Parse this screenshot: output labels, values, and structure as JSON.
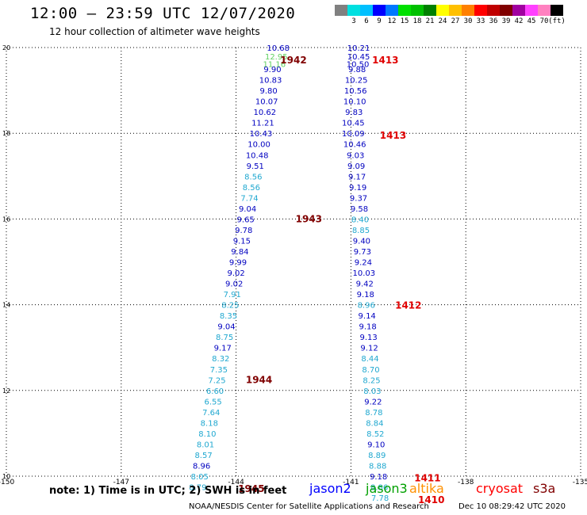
{
  "header": {
    "title": "12:00 – 23:59 UTC 12/07/2020",
    "subtitle": "12 hour collection of altimeter wave heights"
  },
  "legend": {
    "unit": "(ft)",
    "colors": [
      "#808080",
      "#00e0e0",
      "#00c0ff",
      "#0000ff",
      "#0078ff",
      "#00e000",
      "#00c000",
      "#008000",
      "#ffff00",
      "#ffc000",
      "#ff8000",
      "#ff0000",
      "#c00000",
      "#800000",
      "#a000a0",
      "#ff40ff",
      "#ff80c0",
      "#000000"
    ],
    "labels": [
      "3",
      "6",
      "9",
      "12",
      "15",
      "18",
      "21",
      "24",
      "27",
      "30",
      "33",
      "36",
      "39",
      "42",
      "45",
      "70"
    ]
  },
  "axes": {
    "x_ticks": [
      "-150",
      "-147",
      "-144",
      "-141",
      "-138",
      "-135"
    ],
    "y_ticks": [
      "20",
      "18",
      "16",
      "14",
      "12",
      "10"
    ]
  },
  "chart_data": {
    "type": "scatter",
    "xlim": [
      -150,
      -135
    ],
    "ylim": [
      10,
      20
    ],
    "grid": true,
    "tracks": [
      {
        "pass": "1942",
        "pass_lon": -142.5,
        "pass_lat": 19.7,
        "pass_color": "#800000",
        "points": [
          {
            "lon": -142.9,
            "lat": 20.0,
            "v": "10.68",
            "c": "#0000c0"
          },
          {
            "lon": -142.95,
            "lat": 19.8,
            "v": "12.95",
            "c": "#60d060"
          },
          {
            "lon": -143.0,
            "lat": 19.62,
            "v": "11.16",
            "c": "#60d060"
          },
          {
            "lon": -143.05,
            "lat": 19.5,
            "v": "9.90",
            "c": "#0000c0"
          },
          {
            "lon": -143.1,
            "lat": 19.25,
            "v": "10.83",
            "c": "#0000c0"
          },
          {
            "lon": -143.15,
            "lat": 19.0,
            "v": "9.80",
            "c": "#0000c0"
          },
          {
            "lon": -143.2,
            "lat": 18.75,
            "v": "10.07",
            "c": "#0000c0"
          },
          {
            "lon": -143.25,
            "lat": 18.5,
            "v": "10.62",
            "c": "#0000c0"
          },
          {
            "lon": -143.3,
            "lat": 18.25,
            "v": "11.21",
            "c": "#0000c0"
          },
          {
            "lon": -143.35,
            "lat": 18.0,
            "v": "10.43",
            "c": "#0000c0"
          },
          {
            "lon": -143.4,
            "lat": 17.75,
            "v": "10.00",
            "c": "#0000c0"
          },
          {
            "lon": -143.45,
            "lat": 17.5,
            "v": "10.48",
            "c": "#0000c0"
          },
          {
            "lon": -143.5,
            "lat": 17.25,
            "v": "9.51",
            "c": "#0000c0"
          },
          {
            "lon": -143.55,
            "lat": 17.0,
            "v": "8.56",
            "c": "#20a8d0"
          },
          {
            "lon": -143.6,
            "lat": 16.75,
            "v": "8.56",
            "c": "#20a8d0"
          },
          {
            "lon": -143.65,
            "lat": 16.5,
            "v": "7.74",
            "c": "#20a8d0"
          },
          {
            "lon": -143.7,
            "lat": 16.25,
            "v": "9.04",
            "c": "#0000c0"
          },
          {
            "lon": -143.75,
            "lat": 16.0,
            "v": "9.65",
            "c": "#0000c0"
          }
        ]
      },
      {
        "pass": "1943",
        "pass_lon": -142.1,
        "pass_lat": 16.0,
        "pass_color": "#800000",
        "points": [
          {
            "lon": -143.8,
            "lat": 15.75,
            "v": "9.78",
            "c": "#0000c0"
          },
          {
            "lon": -143.85,
            "lat": 15.5,
            "v": "9.15",
            "c": "#0000c0"
          },
          {
            "lon": -143.9,
            "lat": 15.25,
            "v": "9.84",
            "c": "#0000c0"
          },
          {
            "lon": -143.95,
            "lat": 15.0,
            "v": "9.99",
            "c": "#0000c0"
          },
          {
            "lon": -144.0,
            "lat": 14.75,
            "v": "9.02",
            "c": "#0000c0"
          },
          {
            "lon": -144.05,
            "lat": 14.5,
            "v": "9.02",
            "c": "#0000c0"
          },
          {
            "lon": -144.1,
            "lat": 14.25,
            "v": "7.91",
            "c": "#20a8d0"
          },
          {
            "lon": -144.15,
            "lat": 14.0,
            "v": "8.25",
            "c": "#20a8d0"
          },
          {
            "lon": -144.2,
            "lat": 13.75,
            "v": "8.35",
            "c": "#20a8d0"
          },
          {
            "lon": -144.25,
            "lat": 13.5,
            "v": "9.04",
            "c": "#0000c0"
          },
          {
            "lon": -144.3,
            "lat": 13.25,
            "v": "8.75",
            "c": "#20a8d0"
          },
          {
            "lon": -144.35,
            "lat": 13.0,
            "v": "9.17",
            "c": "#0000c0"
          },
          {
            "lon": -144.4,
            "lat": 12.75,
            "v": "8.32",
            "c": "#20a8d0"
          },
          {
            "lon": -144.45,
            "lat": 12.5,
            "v": "7.35",
            "c": "#20a8d0"
          },
          {
            "lon": -144.5,
            "lat": 12.25,
            "v": "7.25",
            "c": "#20a8d0"
          }
        ]
      },
      {
        "pass": "1944",
        "pass_lon": -143.4,
        "pass_lat": 12.25,
        "pass_color": "#800000",
        "points": [
          {
            "lon": -144.55,
            "lat": 12.0,
            "v": "6.60",
            "c": "#20a8d0"
          },
          {
            "lon": -144.6,
            "lat": 11.75,
            "v": "6.55",
            "c": "#20a8d0"
          },
          {
            "lon": -144.65,
            "lat": 11.5,
            "v": "7.64",
            "c": "#20a8d0"
          },
          {
            "lon": -144.7,
            "lat": 11.25,
            "v": "8.18",
            "c": "#20a8d0"
          },
          {
            "lon": -144.75,
            "lat": 11.0,
            "v": "8.10",
            "c": "#20a8d0"
          },
          {
            "lon": -144.8,
            "lat": 10.75,
            "v": "8.01",
            "c": "#20a8d0"
          },
          {
            "lon": -144.85,
            "lat": 10.5,
            "v": "8.57",
            "c": "#20a8d0"
          },
          {
            "lon": -144.9,
            "lat": 10.25,
            "v": "8.96",
            "c": "#0000c0"
          },
          {
            "lon": -144.95,
            "lat": 10.0,
            "v": "8.05",
            "c": "#20a8d0"
          },
          {
            "lon": -145.0,
            "lat": 9.75,
            "v": "8.79",
            "c": "#20a8d0"
          }
        ]
      },
      {
        "pass": "1945",
        "pass_lon": -143.6,
        "pass_lat": 9.7,
        "pass_color": "#800000",
        "points": []
      },
      {
        "pass": "1413",
        "pass_lon": -140.1,
        "pass_lat": 19.7,
        "pass_color": "#e00000",
        "points": [
          {
            "lon": -140.8,
            "lat": 20.0,
            "v": "10.21",
            "c": "#0000c0"
          },
          {
            "lon": -140.8,
            "lat": 19.8,
            "v": "10.45",
            "c": "#0000c0"
          },
          {
            "lon": -140.82,
            "lat": 19.62,
            "v": "10.50",
            "c": "#0000c0"
          },
          {
            "lon": -140.84,
            "lat": 19.5,
            "v": "9.88",
            "c": "#0000c0"
          },
          {
            "lon": -140.86,
            "lat": 19.25,
            "v": "10.25",
            "c": "#0000c0"
          },
          {
            "lon": -140.88,
            "lat": 19.0,
            "v": "10.56",
            "c": "#0000c0"
          },
          {
            "lon": -140.9,
            "lat": 18.75,
            "v": "10.10",
            "c": "#0000c0"
          },
          {
            "lon": -140.92,
            "lat": 18.5,
            "v": "9.83",
            "c": "#0000c0"
          },
          {
            "lon": -140.94,
            "lat": 18.25,
            "v": "10.45",
            "c": "#0000c0"
          }
        ]
      },
      {
        "pass": "1413",
        "pass_lon": -139.9,
        "pass_lat": 17.95,
        "pass_color": "#e00000",
        "points": [
          {
            "lon": -140.94,
            "lat": 18.0,
            "v": "10.09",
            "c": "#0000c0"
          },
          {
            "lon": -140.9,
            "lat": 17.75,
            "v": "10.46",
            "c": "#0000c0"
          },
          {
            "lon": -140.88,
            "lat": 17.5,
            "v": "9.03",
            "c": "#0000c0"
          },
          {
            "lon": -140.86,
            "lat": 17.25,
            "v": "9.09",
            "c": "#0000c0"
          },
          {
            "lon": -140.84,
            "lat": 17.0,
            "v": "9.17",
            "c": "#0000c0"
          },
          {
            "lon": -140.82,
            "lat": 16.75,
            "v": "9.19",
            "c": "#0000c0"
          },
          {
            "lon": -140.8,
            "lat": 16.5,
            "v": "9.37",
            "c": "#0000c0"
          },
          {
            "lon": -140.78,
            "lat": 16.25,
            "v": "9.58",
            "c": "#0000c0"
          },
          {
            "lon": -140.76,
            "lat": 16.0,
            "v": "8.40",
            "c": "#20a8d0"
          },
          {
            "lon": -140.74,
            "lat": 15.75,
            "v": "8.85",
            "c": "#20a8d0"
          },
          {
            "lon": -140.72,
            "lat": 15.5,
            "v": "9.40",
            "c": "#0000c0"
          },
          {
            "lon": -140.7,
            "lat": 15.25,
            "v": "9.73",
            "c": "#0000c0"
          },
          {
            "lon": -140.68,
            "lat": 15.0,
            "v": "9.24",
            "c": "#0000c0"
          },
          {
            "lon": -140.66,
            "lat": 14.75,
            "v": "10.03",
            "c": "#0000c0"
          },
          {
            "lon": -140.64,
            "lat": 14.5,
            "v": "9.42",
            "c": "#0000c0"
          },
          {
            "lon": -140.62,
            "lat": 14.25,
            "v": "9.18",
            "c": "#0000c0"
          },
          {
            "lon": -140.6,
            "lat": 14.0,
            "v": "8.96",
            "c": "#20a8d0"
          }
        ]
      },
      {
        "pass": "1412",
        "pass_lon": -139.5,
        "pass_lat": 13.98,
        "pass_color": "#e00000",
        "points": [
          {
            "lon": -140.58,
            "lat": 13.75,
            "v": "9.14",
            "c": "#0000c0"
          },
          {
            "lon": -140.56,
            "lat": 13.5,
            "v": "9.18",
            "c": "#0000c0"
          },
          {
            "lon": -140.54,
            "lat": 13.25,
            "v": "9.13",
            "c": "#0000c0"
          },
          {
            "lon": -140.52,
            "lat": 13.0,
            "v": "9.12",
            "c": "#0000c0"
          },
          {
            "lon": -140.5,
            "lat": 12.75,
            "v": "8.44",
            "c": "#20a8d0"
          },
          {
            "lon": -140.48,
            "lat": 12.5,
            "v": "8.70",
            "c": "#20a8d0"
          },
          {
            "lon": -140.46,
            "lat": 12.25,
            "v": "8.25",
            "c": "#20a8d0"
          },
          {
            "lon": -140.44,
            "lat": 12.0,
            "v": "8.03",
            "c": "#20a8d0"
          },
          {
            "lon": -140.42,
            "lat": 11.75,
            "v": "9.22",
            "c": "#0000c0"
          },
          {
            "lon": -140.4,
            "lat": 11.5,
            "v": "8.78",
            "c": "#20a8d0"
          },
          {
            "lon": -140.38,
            "lat": 11.25,
            "v": "8.84",
            "c": "#20a8d0"
          },
          {
            "lon": -140.36,
            "lat": 11.0,
            "v": "8.52",
            "c": "#20a8d0"
          },
          {
            "lon": -140.34,
            "lat": 10.75,
            "v": "9.10",
            "c": "#0000c0"
          },
          {
            "lon": -140.32,
            "lat": 10.5,
            "v": "8.89",
            "c": "#20a8d0"
          },
          {
            "lon": -140.3,
            "lat": 10.25,
            "v": "8.88",
            "c": "#20a8d0"
          },
          {
            "lon": -140.28,
            "lat": 10.0,
            "v": "9.18",
            "c": "#0000c0"
          }
        ]
      },
      {
        "pass": "1411",
        "pass_lon": -139.0,
        "pass_lat": 9.95,
        "pass_color": "#e00000",
        "points": [
          {
            "lon": -140.26,
            "lat": 9.75,
            "v": "8.86",
            "c": "#20a8d0"
          },
          {
            "lon": -140.24,
            "lat": 9.5,
            "v": "7.78",
            "c": "#20a8d0"
          }
        ]
      },
      {
        "pass": "1410",
        "pass_lon": -138.9,
        "pass_lat": 9.45,
        "pass_color": "#e00000",
        "points": []
      }
    ]
  },
  "footer": {
    "note": "note:  1) Time is in UTC;  2) SWH is in feet",
    "satellites": [
      {
        "name": "jason2",
        "color": "#0000ff"
      },
      {
        "name": "jason3",
        "color": "#00a000"
      },
      {
        "name": "altika",
        "color": "#ff9000"
      },
      {
        "name": "cryosat",
        "color": "#ff0000"
      },
      {
        "name": "s3a",
        "color": "#800000"
      }
    ],
    "credit": "NOAA/NESDIS Center for Satellite Applications and Research",
    "timestamp": "Dec 10 08:29:42 UTC 2020"
  }
}
